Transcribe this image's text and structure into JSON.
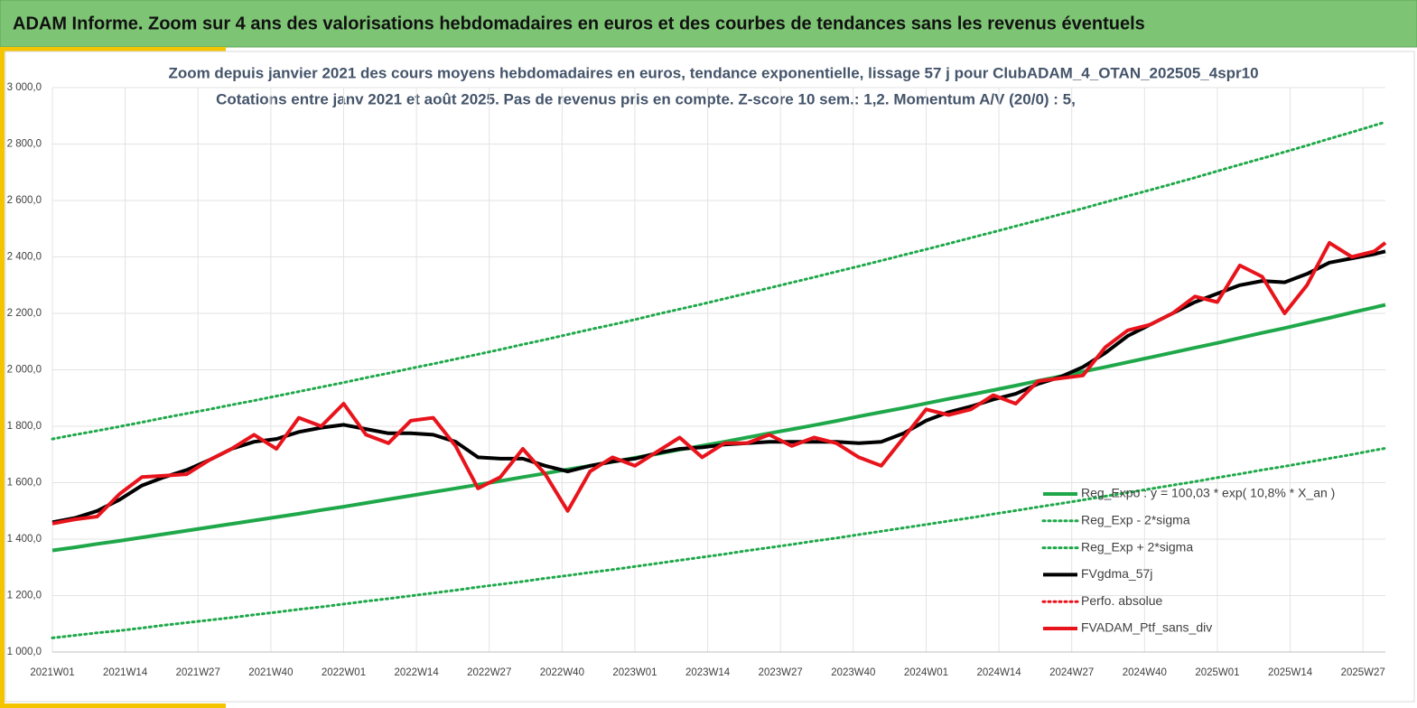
{
  "header": {
    "title": "ADAM Informe. Zoom sur 4 ans des valorisations hebdomadaires en euros et des courbes de tendances sans les revenus éventuels"
  },
  "chart_data": {
    "type": "line",
    "title": "Zoom depuis janvier 2021 des cours moyens hebdomadaires  en euros, tendance exponentielle, lissage 57 j pour ClubADAM_4_OTAN_202505_4spr10",
    "subtitle": "Cotations  entre janv 2021 et août 2025. Pas de revenus pris en compte. Z-score 10 sem.: 1,2. Momentum  A/V (20/0) : 5,",
    "x": [
      0,
      4,
      8,
      12,
      16,
      20,
      24,
      28,
      32,
      36,
      40,
      44,
      48,
      52,
      56,
      60,
      64,
      68,
      72,
      76,
      80,
      84,
      88,
      92,
      96,
      100,
      104,
      108,
      112,
      116,
      120,
      124,
      128,
      132,
      136,
      140,
      144,
      148,
      152,
      156,
      160,
      164,
      168,
      172,
      176,
      180,
      184,
      188,
      192,
      196,
      200,
      204,
      208,
      212,
      216,
      220,
      224,
      228,
      232,
      236,
      238
    ],
    "xlim": [
      0,
      238
    ],
    "xticks": [
      {
        "value": 0,
        "label": "2021W01"
      },
      {
        "value": 13,
        "label": "2021W14"
      },
      {
        "value": 26,
        "label": "2021W27"
      },
      {
        "value": 39,
        "label": "2021W40"
      },
      {
        "value": 52,
        "label": "2022W01"
      },
      {
        "value": 65,
        "label": "2022W14"
      },
      {
        "value": 78,
        "label": "2022W27"
      },
      {
        "value": 91,
        "label": "2022W40"
      },
      {
        "value": 104,
        "label": "2023W01"
      },
      {
        "value": 117,
        "label": "2023W14"
      },
      {
        "value": 130,
        "label": "2023W27"
      },
      {
        "value": 143,
        "label": "2023W40"
      },
      {
        "value": 156,
        "label": "2024W01"
      },
      {
        "value": 169,
        "label": "2024W14"
      },
      {
        "value": 182,
        "label": "2024W27"
      },
      {
        "value": 195,
        "label": "2024W40"
      },
      {
        "value": 208,
        "label": "2025W01"
      },
      {
        "value": 221,
        "label": "2025W14"
      },
      {
        "value": 234,
        "label": "2025W27"
      }
    ],
    "ylim": [
      1000,
      3000
    ],
    "yticks": [
      {
        "value": 1000,
        "label": "1 000,0"
      },
      {
        "value": 1200,
        "label": "1 200,0"
      },
      {
        "value": 1400,
        "label": "1 400,0"
      },
      {
        "value": 1600,
        "label": "1 600,0"
      },
      {
        "value": 1800,
        "label": "1 800,0"
      },
      {
        "value": 2000,
        "label": "2 000,0"
      },
      {
        "value": 2200,
        "label": "2 200,0"
      },
      {
        "value": 2400,
        "label": "2 400,0"
      },
      {
        "value": 2600,
        "label": "2 600,0"
      },
      {
        "value": 2800,
        "label": "2 800,0"
      },
      {
        "value": 3000,
        "label": "3 000,0"
      }
    ],
    "grid": true,
    "legend": "lower right",
    "series": [
      {
        "name": "Reg_Expo : y = 100,03 * exp( 10,8% *  X_an )",
        "color": "#1fa84a",
        "line_style": "solid",
        "values": [
          1360,
          1371,
          1383,
          1394,
          1406,
          1418,
          1430,
          1442,
          1454,
          1466,
          1478,
          1490,
          1503,
          1515,
          1528,
          1541,
          1554,
          1567,
          1580,
          1593,
          1606,
          1620,
          1633,
          1647,
          1660,
          1674,
          1688,
          1702,
          1717,
          1731,
          1745,
          1760,
          1775,
          1789,
          1804,
          1819,
          1835,
          1850,
          1865,
          1881,
          1897,
          1912,
          1928,
          1944,
          1961,
          1977,
          1994,
          2010,
          2027,
          2044,
          2061,
          2078,
          2095,
          2113,
          2131,
          2148,
          2166,
          2184,
          2203,
          2221,
          2230
        ]
      },
      {
        "name": "Reg_Exp - 2*sigma",
        "color": "#1fa84a",
        "line_style": "dotted",
        "values": [
          1050,
          1059,
          1068,
          1076,
          1085,
          1095,
          1104,
          1113,
          1122,
          1132,
          1141,
          1151,
          1160,
          1170,
          1180,
          1189,
          1199,
          1209,
          1219,
          1230,
          1240,
          1250,
          1261,
          1271,
          1282,
          1292,
          1303,
          1314,
          1325,
          1336,
          1347,
          1359,
          1370,
          1381,
          1393,
          1404,
          1416,
          1428,
          1440,
          1452,
          1464,
          1476,
          1489,
          1501,
          1514,
          1526,
          1539,
          1552,
          1565,
          1578,
          1591,
          1604,
          1618,
          1631,
          1645,
          1658,
          1672,
          1686,
          1700,
          1715,
          1722
        ]
      },
      {
        "name": "Reg_Exp + 2*sigma",
        "color": "#1fa84a",
        "line_style": "dotted",
        "values": [
          1755,
          1770,
          1784,
          1799,
          1814,
          1830,
          1845,
          1860,
          1876,
          1891,
          1907,
          1923,
          1939,
          1955,
          1972,
          1988,
          2005,
          2021,
          2038,
          2055,
          2072,
          2090,
          2107,
          2125,
          2143,
          2160,
          2178,
          2197,
          2215,
          2233,
          2252,
          2271,
          2290,
          2309,
          2328,
          2348,
          2367,
          2387,
          2407,
          2427,
          2447,
          2468,
          2488,
          2509,
          2530,
          2551,
          2572,
          2594,
          2616,
          2637,
          2659,
          2681,
          2704,
          2727,
          2749,
          2772,
          2795,
          2819,
          2842,
          2866,
          2878
        ]
      },
      {
        "name": "FVgdma_57j",
        "color": "#000000",
        "line_style": "solid",
        "values": [
          1460,
          1475,
          1500,
          1540,
          1590,
          1620,
          1645,
          1680,
          1720,
          1745,
          1755,
          1780,
          1795,
          1805,
          1790,
          1775,
          1775,
          1770,
          1745,
          1690,
          1685,
          1685,
          1660,
          1640,
          1660,
          1675,
          1685,
          1705,
          1720,
          1725,
          1735,
          1740,
          1745,
          1745,
          1745,
          1745,
          1740,
          1745,
          1775,
          1820,
          1850,
          1870,
          1895,
          1915,
          1950,
          1975,
          2010,
          2060,
          2120,
          2160,
          2200,
          2240,
          2270,
          2300,
          2315,
          2310,
          2340,
          2380,
          2395,
          2410,
          2420
        ]
      },
      {
        "name": "Perfo. absolue",
        "color": "#e8141c",
        "line_style": "dotted"
      },
      {
        "name": "FVADAM_Ptf_sans_div",
        "color": "#e8141c",
        "line_style": "solid",
        "values": [
          1455,
          1470,
          1480,
          1560,
          1620,
          1625,
          1630,
          1680,
          1720,
          1770,
          1720,
          1830,
          1800,
          1880,
          1770,
          1740,
          1820,
          1830,
          1730,
          1580,
          1620,
          1720,
          1630,
          1500,
          1640,
          1690,
          1660,
          1710,
          1760,
          1690,
          1740,
          1740,
          1770,
          1730,
          1760,
          1740,
          1690,
          1660,
          1760,
          1860,
          1840,
          1860,
          1910,
          1880,
          1960,
          1970,
          1980,
          2080,
          2140,
          2160,
          2200,
          2260,
          2240,
          2370,
          2330,
          2200,
          2300,
          2450,
          2400,
          2420,
          2450
        ]
      }
    ]
  }
}
